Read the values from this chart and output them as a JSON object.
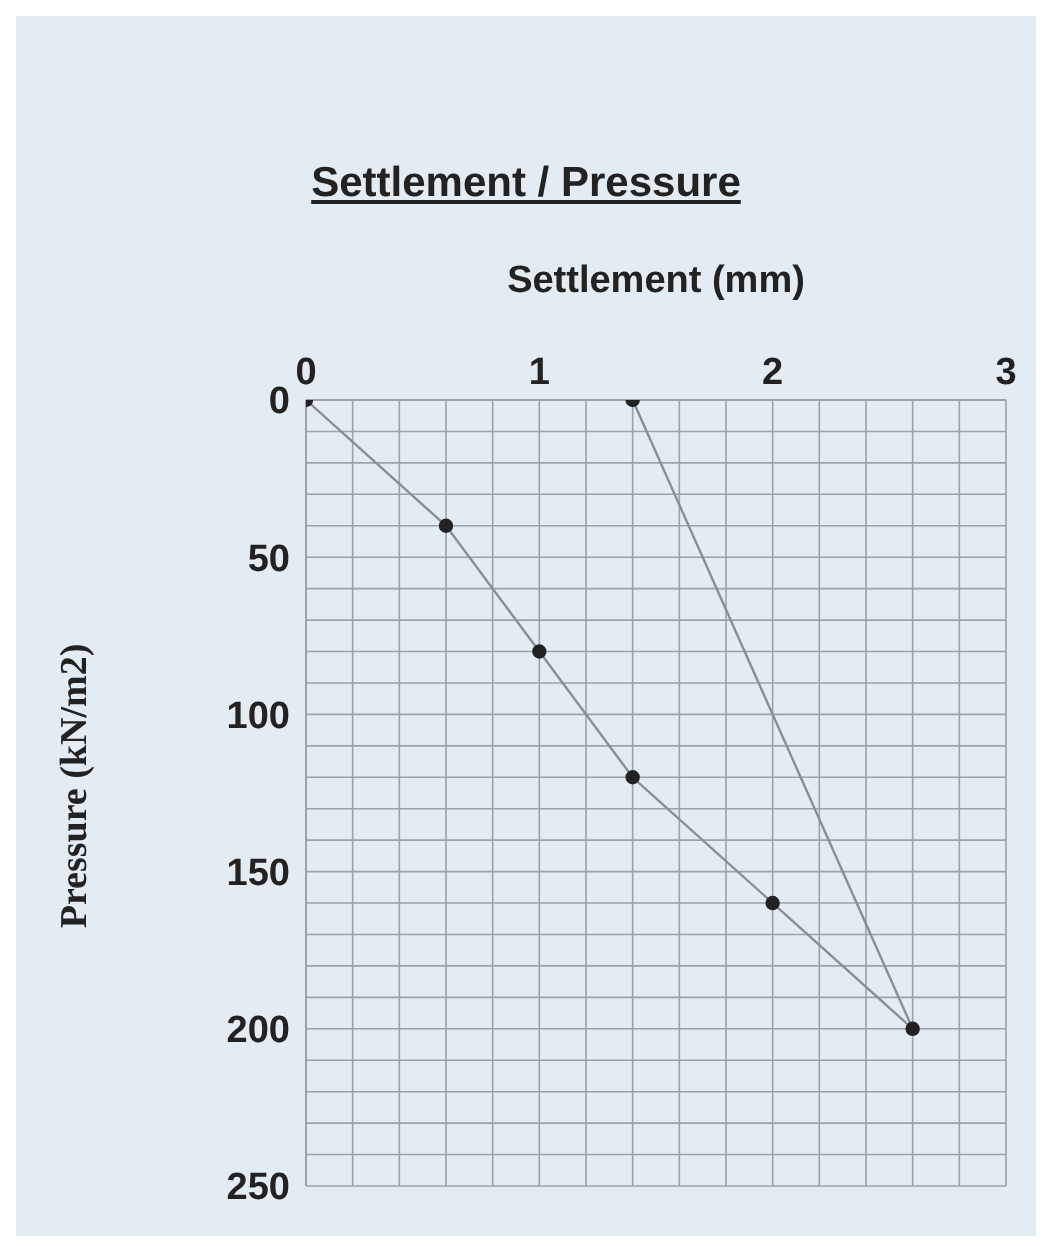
{
  "chart_data": {
    "type": "line",
    "title": "Settlement / Pressure",
    "xlabel": "Settlement (mm)",
    "ylabel": "Pressure (kN/m2)",
    "series": [
      {
        "color": "#8a8f96",
        "x": [
          0,
          0.6,
          1,
          1.4,
          2,
          2.6,
          1.4
        ],
        "values": [
          0,
          40,
          80,
          120,
          160,
          200,
          0
        ]
      }
    ],
    "xlim": [
      0,
      3
    ],
    "ylim": [
      250,
      0
    ],
    "xticks": [
      0,
      {
        "value": 0.2,
        "label": null
      },
      {
        "value": 0.4,
        "label": null
      },
      {
        "value": 0.6,
        "label": null
      },
      {
        "value": 0.8,
        "label": null
      },
      1,
      {
        "value": 1.2,
        "label": null
      },
      {
        "value": 1.4,
        "label": null
      },
      {
        "value": 1.6,
        "label": null
      },
      {
        "value": 1.8,
        "label": null
      },
      2,
      {
        "value": 2.2,
        "label": null
      },
      {
        "value": 2.4,
        "label": null
      },
      {
        "value": 2.6,
        "label": null
      },
      {
        "value": 2.8,
        "label": null
      },
      3
    ],
    "yticks": [
      0,
      {
        "value": 10,
        "label": null
      },
      {
        "value": 20,
        "label": null
      },
      {
        "value": 30,
        "label": null
      },
      {
        "value": 40,
        "label": null
      },
      50,
      {
        "value": 60,
        "label": null
      },
      {
        "value": 70,
        "label": null
      },
      {
        "value": 80,
        "label": null
      },
      {
        "value": 90,
        "label": null
      },
      100,
      {
        "value": 110,
        "label": null
      },
      {
        "value": 120,
        "label": null
      },
      {
        "value": 130,
        "label": null
      },
      {
        "value": 140,
        "label": null
      },
      150,
      {
        "value": 160,
        "label": null
      },
      {
        "value": 170,
        "label": null
      },
      {
        "value": 180,
        "label": null
      },
      {
        "value": 190,
        "label": null
      },
      200,
      {
        "value": 210,
        "label": null
      },
      {
        "value": 220,
        "label": null
      },
      {
        "value": 230,
        "label": null
      },
      {
        "value": 240,
        "label": null
      },
      250
    ],
    "grid": true,
    "marker": "circle",
    "line_style": "solid"
  }
}
